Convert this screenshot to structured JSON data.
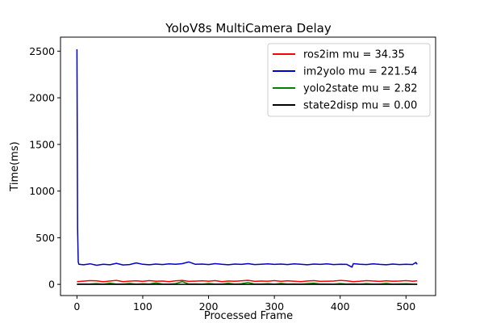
{
  "chart_data": {
    "type": "line",
    "title": "YoloV8s MultiCamera Delay",
    "xlabel": "Processed Frame",
    "ylabel": "Time(ms)",
    "xlim": [
      -25,
      545
    ],
    "ylim": [
      -120,
      2650
    ],
    "xticks": [
      0,
      100,
      200,
      300,
      400,
      500
    ],
    "yticks": [
      0,
      500,
      1000,
      1500,
      2000,
      2500
    ],
    "grid": false,
    "legend_position": "top-right",
    "series": [
      {
        "name": "ros2im mu = 34.35",
        "color": "#ff0000",
        "x": [
          0,
          10,
          20,
          30,
          40,
          50,
          60,
          70,
          80,
          90,
          100,
          110,
          120,
          130,
          140,
          150,
          160,
          170,
          180,
          190,
          200,
          210,
          220,
          230,
          240,
          250,
          260,
          270,
          280,
          290,
          300,
          310,
          320,
          330,
          340,
          350,
          360,
          370,
          380,
          390,
          400,
          410,
          420,
          430,
          440,
          450,
          460,
          470,
          480,
          490,
          500,
          510,
          517
        ],
        "y": [
          30,
          35,
          40,
          38,
          28,
          36,
          42,
          30,
          35,
          38,
          32,
          40,
          34,
          36,
          30,
          38,
          42,
          32,
          35,
          38,
          34,
          40,
          30,
          36,
          34,
          38,
          44,
          32,
          36,
          34,
          40,
          32,
          38,
          34,
          30,
          36,
          40,
          32,
          34,
          36,
          42,
          38,
          30,
          34,
          40,
          36,
          32,
          38,
          34,
          36,
          40,
          34,
          38
        ]
      },
      {
        "name": "im2yolo mu = 221.54",
        "color": "#0000cc",
        "x": [
          0,
          1,
          2,
          3,
          10,
          20,
          30,
          40,
          50,
          60,
          70,
          80,
          90,
          100,
          110,
          120,
          130,
          140,
          150,
          160,
          170,
          180,
          190,
          200,
          210,
          220,
          230,
          240,
          250,
          260,
          270,
          280,
          290,
          300,
          310,
          320,
          330,
          340,
          350,
          360,
          370,
          380,
          390,
          400,
          410,
          418,
          420,
          430,
          440,
          450,
          460,
          470,
          480,
          490,
          500,
          510,
          515,
          517
        ],
        "y": [
          2520,
          600,
          240,
          215,
          210,
          220,
          205,
          215,
          210,
          225,
          208,
          212,
          230,
          215,
          210,
          218,
          212,
          220,
          215,
          222,
          240,
          215,
          218,
          212,
          222,
          215,
          210,
          218,
          214,
          222,
          212,
          216,
          220,
          214,
          218,
          212,
          220,
          215,
          210,
          218,
          214,
          220,
          212,
          216,
          214,
          185,
          222,
          215,
          212,
          220,
          214,
          210,
          218,
          212,
          216,
          212,
          235,
          215
        ]
      },
      {
        "name": "yolo2state mu = 2.82",
        "color": "#008000",
        "x": [
          0,
          10,
          20,
          30,
          40,
          50,
          60,
          70,
          80,
          90,
          100,
          110,
          120,
          130,
          140,
          150,
          160,
          170,
          180,
          190,
          200,
          210,
          220,
          230,
          240,
          250,
          260,
          270,
          280,
          290,
          300,
          310,
          320,
          330,
          340,
          350,
          360,
          370,
          380,
          390,
          400,
          410,
          420,
          430,
          440,
          450,
          460,
          470,
          480,
          490,
          500,
          510,
          517
        ],
        "y": [
          2,
          3,
          5,
          8,
          2,
          12,
          4,
          3,
          10,
          2,
          6,
          3,
          15,
          4,
          2,
          8,
          30,
          3,
          5,
          2,
          9,
          4,
          3,
          12,
          2,
          6,
          20,
          3,
          4,
          8,
          2,
          10,
          3,
          5,
          2,
          7,
          12,
          3,
          4,
          2,
          9,
          3,
          5,
          2,
          8,
          4,
          3,
          10,
          2,
          5,
          6,
          3,
          2
        ]
      },
      {
        "name": "state2disp mu = 0.00",
        "color": "#000000",
        "x": [
          0,
          517
        ],
        "y": [
          0,
          0
        ]
      }
    ]
  }
}
